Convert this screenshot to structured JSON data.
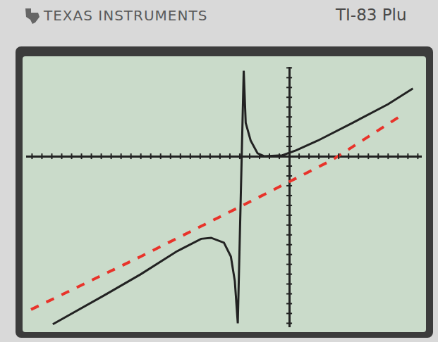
{
  "header": {
    "brand": "TEXAS INSTRUMENTS",
    "model": "TI-83 Plu"
  },
  "chart_data": {
    "type": "line",
    "series": [
      {
        "color": "#222222",
        "line_style": "solid",
        "x": [
          -23.9,
          -18.6,
          -15,
          -11.4,
          -8.9,
          -7.9,
          -6.6,
          -5.9,
          -5.5,
          -5.2,
          -4.6,
          -4.4,
          -3.9,
          -3.2,
          -2.5,
          -0.7,
          0.7,
          2.9,
          6.4,
          10,
          12.5
        ],
        "values": [
          -17.1,
          -14.1,
          -12,
          -9.7,
          -8.4,
          -8.3,
          -8.8,
          -10.2,
          -12.7,
          -17,
          8.7,
          3.4,
          1.6,
          0.3,
          0,
          0.1,
          0.6,
          1.6,
          3.4,
          5.3,
          6.9
        ]
      },
      {
        "color": "#e8332a",
        "line_style": "dashed",
        "x": [
          -26.1,
          -15,
          -4.9,
          4.3,
          11.4
        ],
        "values": [
          -15.6,
          -10.2,
          -5.1,
          -0.4,
          4.2
        ]
      }
    ],
    "xlim": [
      -26.6,
      13.4
    ],
    "ylim": [
      -17.4,
      9.1
    ],
    "xticks": [
      -26,
      -25,
      -24,
      -23,
      -22,
      -21,
      -20,
      -19,
      -18,
      -17,
      -16,
      -15,
      -14,
      -13,
      -12,
      -11,
      -10,
      -9,
      -8,
      -7,
      -6,
      -5,
      -4,
      -3,
      -2,
      -1,
      0,
      1,
      2,
      3,
      4,
      5,
      6,
      7,
      8,
      9,
      10,
      11,
      12,
      13
    ],
    "yticks": [
      -17,
      -16,
      -15,
      -14,
      -13,
      -12,
      -11,
      -10,
      -9,
      -8,
      -7,
      -6,
      -5,
      -4,
      -3,
      -2,
      -1,
      0,
      1,
      2,
      3,
      4,
      5,
      6,
      7,
      8,
      9
    ],
    "grid": false,
    "tick_labels": false
  }
}
